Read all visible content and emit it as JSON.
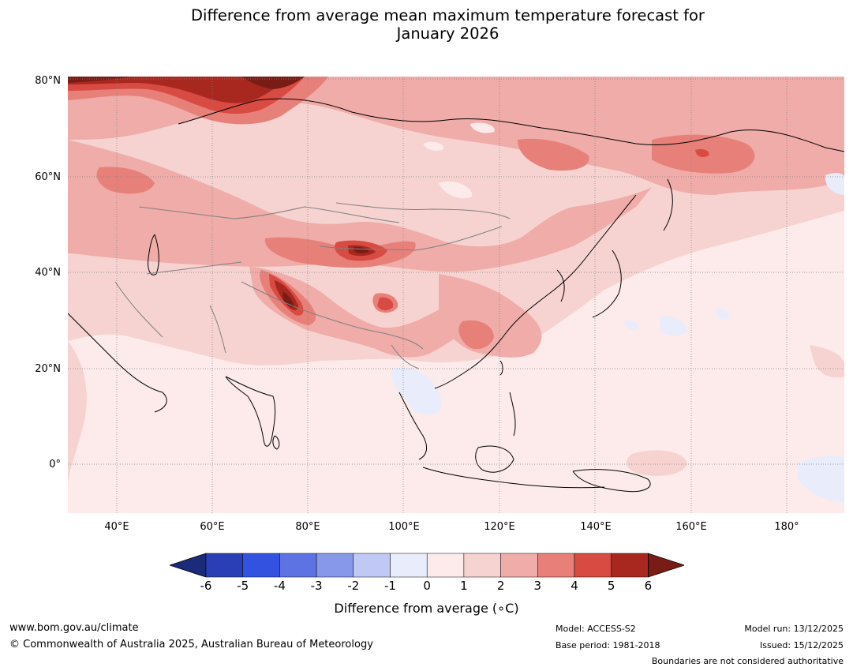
{
  "title": {
    "line1": "Difference from average mean maximum temperature forecast for",
    "line2": "January 2026"
  },
  "map": {
    "lat_labels": [
      "80°N",
      "60°N",
      "40°N",
      "20°N",
      "0°"
    ],
    "lon_labels": [
      "40°E",
      "60°E",
      "80°E",
      "100°E",
      "120°E",
      "140°E",
      "160°E",
      "180°"
    ],
    "region": "Asia"
  },
  "legend": {
    "ticks": [
      "-6",
      "-5",
      "-4",
      "-3",
      "-2",
      "-1",
      "0",
      "1",
      "2",
      "3",
      "4",
      "5",
      "6"
    ],
    "colors": [
      "#1c2a7a",
      "#2a3fb5",
      "#3352e0",
      "#5e73e3",
      "#8797ea",
      "#c0c9f3",
      "#e8ecfb",
      "#fcebea",
      "#f6d3d0",
      "#efaca8",
      "#e8807a",
      "#d84b42",
      "#a8281f",
      "#7a1c16"
    ],
    "label": "Difference from average (∘C)"
  },
  "footer": {
    "website": "www.bom.gov.au/climate",
    "copyright": "© Commonwealth of Australia 2025, Australian Bureau of Meteorology",
    "model": "Model: ACCESS-S2",
    "base_period": "Base period: 1981-2018",
    "model_run": "Model run: 13/12/2025",
    "issued": "Issued: 15/12/2025",
    "disclaimer": "Boundaries are not considered authoritative"
  }
}
